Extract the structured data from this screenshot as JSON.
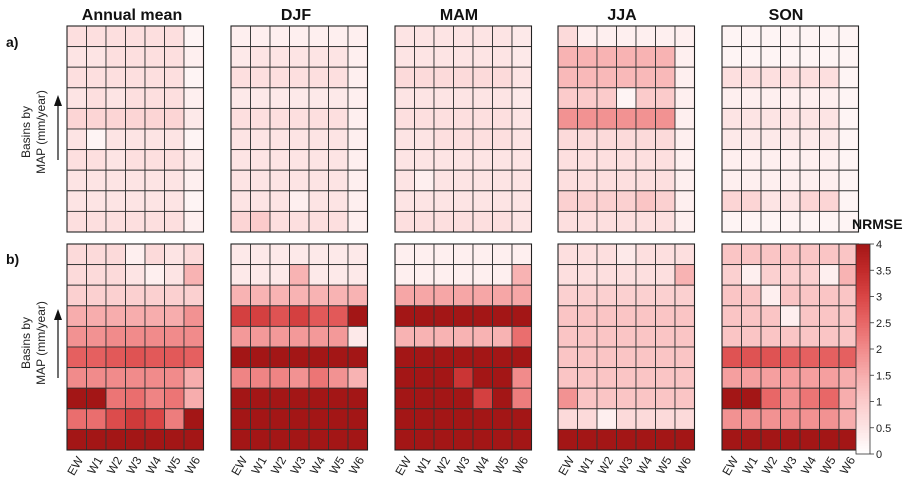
{
  "chart_data": {
    "type": "heatmap",
    "columns": [
      "Annual mean",
      "DJF",
      "MAM",
      "JJA",
      "SON"
    ],
    "row_labels": [
      "a)",
      "b)"
    ],
    "x_ticks": [
      "EW",
      "W1",
      "W2",
      "W3",
      "W4",
      "W5",
      "W6"
    ],
    "ylabel_line1": "Basins by",
    "ylabel_line2": "MAP (mm/year)",
    "colorbar": {
      "title": "NRMSE",
      "min": 0,
      "max": 4,
      "ticks": [
        "0",
        "0.5",
        "1",
        "1.5",
        "2",
        "2.5",
        "3",
        "3.5",
        "4"
      ],
      "colors": [
        "#ffffff",
        "#fde4e4",
        "#fbcbcb",
        "#f7adad",
        "#f18b8b",
        "#e86767",
        "#d94545",
        "#c12a2a",
        "#a31616"
      ]
    },
    "grid_rows": 10,
    "note_rows": "rows listed top (highest MAP) to bottom; values are NRMSE",
    "panels": {
      "a": [
        [
          [
            0.6,
            0.6,
            0.6,
            0.6,
            0.6,
            0.6,
            0.2
          ],
          [
            0.5,
            0.5,
            0.6,
            0.6,
            0.6,
            0.6,
            0.3
          ],
          [
            0.6,
            0.6,
            0.6,
            0.6,
            0.6,
            0.6,
            0.2
          ],
          [
            0.5,
            0.6,
            0.5,
            0.6,
            0.6,
            0.6,
            0.3
          ],
          [
            0.8,
            0.8,
            0.8,
            0.8,
            0.8,
            0.8,
            0.4
          ],
          [
            0.5,
            0.2,
            0.5,
            0.5,
            0.5,
            0.5,
            0.2
          ],
          [
            0.6,
            0.6,
            0.5,
            0.6,
            0.6,
            0.6,
            0.4
          ],
          [
            0.5,
            0.5,
            0.5,
            0.5,
            0.5,
            0.5,
            0.3
          ],
          [
            0.5,
            0.5,
            0.5,
            0.5,
            0.5,
            0.5,
            0.2
          ],
          [
            0.6,
            0.6,
            0.6,
            0.6,
            0.6,
            0.6,
            0.3
          ]
        ],
        [
          [
            0.3,
            0.3,
            0.3,
            0.3,
            0.3,
            0.3,
            0.3
          ],
          [
            0.4,
            0.5,
            0.5,
            0.5,
            0.5,
            0.5,
            0.3
          ],
          [
            0.6,
            0.6,
            0.6,
            0.6,
            0.6,
            0.6,
            0.3
          ],
          [
            0.4,
            0.4,
            0.4,
            0.4,
            0.4,
            0.4,
            0.3
          ],
          [
            0.6,
            0.6,
            0.6,
            0.6,
            0.6,
            0.6,
            0.3
          ],
          [
            0.5,
            0.5,
            0.5,
            0.5,
            0.5,
            0.5,
            0.3
          ],
          [
            0.5,
            0.5,
            0.5,
            0.5,
            0.5,
            0.5,
            0.3
          ],
          [
            0.5,
            0.5,
            0.5,
            0.5,
            0.5,
            0.5,
            0.3
          ],
          [
            0.5,
            0.5,
            0.5,
            0.3,
            0.5,
            0.5,
            0.3
          ],
          [
            0.8,
            1.0,
            0.6,
            0.6,
            0.6,
            0.6,
            0.3
          ]
        ],
        [
          [
            0.5,
            0.5,
            0.5,
            0.5,
            0.5,
            0.5,
            0.4
          ],
          [
            0.5,
            0.5,
            0.5,
            0.5,
            0.5,
            0.5,
            0.4
          ],
          [
            0.7,
            0.7,
            0.7,
            0.7,
            0.7,
            0.7,
            0.5
          ],
          [
            0.5,
            0.5,
            0.5,
            0.5,
            0.5,
            0.5,
            0.4
          ],
          [
            0.6,
            0.6,
            0.6,
            0.6,
            0.6,
            0.6,
            0.5
          ],
          [
            0.5,
            0.5,
            0.6,
            0.6,
            0.6,
            0.6,
            0.5
          ],
          [
            0.5,
            0.5,
            0.5,
            0.5,
            0.5,
            0.5,
            0.5
          ],
          [
            0.5,
            0.3,
            0.5,
            0.5,
            0.5,
            0.5,
            0.5
          ],
          [
            0.5,
            0.5,
            0.5,
            0.5,
            0.5,
            0.5,
            0.5
          ],
          [
            0.6,
            0.6,
            0.6,
            0.6,
            0.6,
            0.6,
            0.5
          ]
        ],
        [
          [
            0.7,
            0.3,
            0.3,
            0.3,
            0.3,
            0.3,
            0.3
          ],
          [
            1.4,
            1.4,
            1.4,
            1.4,
            1.4,
            1.4,
            0.3
          ],
          [
            1.3,
            1.3,
            1.3,
            1.3,
            1.3,
            1.3,
            0.3
          ],
          [
            1.0,
            1.0,
            1.0,
            0.2,
            1.0,
            1.0,
            0.3
          ],
          [
            1.9,
            1.9,
            1.9,
            1.9,
            1.9,
            1.9,
            0.3
          ],
          [
            0.7,
            0.7,
            0.7,
            0.7,
            0.7,
            0.7,
            0.3
          ],
          [
            0.6,
            0.6,
            0.6,
            0.6,
            0.6,
            0.6,
            0.3
          ],
          [
            0.6,
            0.6,
            0.6,
            0.6,
            0.6,
            0.6,
            0.3
          ],
          [
            0.9,
            0.9,
            0.9,
            0.9,
            1.1,
            0.9,
            0.3
          ],
          [
            0.6,
            0.6,
            0.6,
            0.6,
            0.6,
            0.6,
            0.3
          ]
        ],
        [
          [
            0.2,
            0.2,
            0.2,
            0.2,
            0.2,
            0.2,
            0.2
          ],
          [
            0.2,
            0.2,
            0.2,
            0.2,
            0.2,
            0.2,
            0.2
          ],
          [
            0.6,
            0.6,
            0.6,
            0.6,
            0.6,
            0.6,
            0.2
          ],
          [
            0.3,
            0.3,
            0.3,
            0.3,
            0.3,
            0.3,
            0.2
          ],
          [
            0.5,
            0.5,
            0.5,
            0.5,
            0.5,
            0.5,
            0.2
          ],
          [
            0.4,
            0.4,
            0.4,
            0.4,
            0.4,
            0.4,
            0.2
          ],
          [
            0.3,
            0.3,
            0.3,
            0.3,
            0.3,
            0.3,
            0.2
          ],
          [
            0.3,
            0.3,
            0.3,
            0.3,
            0.3,
            0.3,
            0.2
          ],
          [
            0.8,
            0.8,
            0.5,
            0.5,
            0.8,
            0.8,
            0.2
          ],
          [
            0.2,
            0.2,
            0.2,
            0.2,
            0.2,
            0.2,
            0.2
          ]
        ]
      ],
      "b": [
        [
          [
            0.7,
            0.7,
            0.7,
            0.3,
            0.7,
            0.5,
            0.7
          ],
          [
            0.7,
            0.7,
            0.7,
            0.5,
            0.3,
            0.5,
            1.4
          ],
          [
            0.9,
            0.9,
            0.9,
            0.9,
            0.9,
            0.9,
            0.9
          ],
          [
            1.5,
            1.5,
            1.5,
            1.5,
            1.5,
            1.5,
            1.9
          ],
          [
            1.9,
            1.9,
            2.0,
            2.0,
            2.0,
            2.0,
            2.0
          ],
          [
            2.6,
            2.6,
            2.7,
            2.8,
            2.7,
            2.7,
            2.6
          ],
          [
            2.0,
            2.0,
            2.0,
            2.0,
            2.0,
            2.0,
            1.5
          ],
          [
            4.0,
            4.0,
            2.3,
            2.4,
            2.1,
            2.3,
            1.5
          ],
          [
            2.4,
            2.4,
            2.9,
            3.2,
            3.0,
            2.2,
            4.0
          ],
          [
            4.0,
            4.0,
            4.0,
            4.0,
            4.0,
            4.0,
            4.0
          ]
        ],
        [
          [
            0.4,
            0.4,
            0.4,
            0.4,
            0.4,
            0.4,
            0.4
          ],
          [
            0.4,
            0.4,
            0.4,
            1.4,
            0.4,
            0.4,
            0.4
          ],
          [
            1.4,
            1.4,
            1.4,
            1.4,
            1.4,
            1.4,
            1.4
          ],
          [
            3.1,
            3.1,
            2.8,
            3.1,
            2.7,
            2.7,
            4.0
          ],
          [
            1.8,
            1.8,
            1.8,
            1.8,
            1.8,
            1.8,
            0.4
          ],
          [
            4.0,
            4.0,
            4.0,
            4.0,
            4.0,
            4.0,
            4.0
          ],
          [
            2.1,
            2.1,
            2.1,
            1.9,
            2.3,
            1.9,
            1.4
          ],
          [
            4.0,
            4.0,
            4.0,
            4.0,
            4.0,
            4.0,
            4.0
          ],
          [
            4.0,
            4.0,
            4.0,
            4.0,
            4.0,
            4.0,
            4.0
          ],
          [
            4.0,
            4.0,
            4.0,
            4.0,
            4.0,
            4.0,
            4.0
          ]
        ],
        [
          [
            0.3,
            0.3,
            0.3,
            0.3,
            0.3,
            0.3,
            0.3
          ],
          [
            0.3,
            0.3,
            0.3,
            0.3,
            0.3,
            0.3,
            1.4
          ],
          [
            1.6,
            1.6,
            1.6,
            1.6,
            1.6,
            1.6,
            1.6
          ],
          [
            4.0,
            4.0,
            4.0,
            4.0,
            4.0,
            4.0,
            4.0
          ],
          [
            1.4,
            1.4,
            1.4,
            1.4,
            1.4,
            1.4,
            2.4
          ],
          [
            4.0,
            4.0,
            4.0,
            4.0,
            4.0,
            4.0,
            4.0
          ],
          [
            4.0,
            4.0,
            4.0,
            3.3,
            4.0,
            4.0,
            2.0
          ],
          [
            4.0,
            4.0,
            4.0,
            4.0,
            3.1,
            4.0,
            2.2
          ],
          [
            4.0,
            4.0,
            4.0,
            4.0,
            4.0,
            4.0,
            4.0
          ],
          [
            4.0,
            4.0,
            4.0,
            4.0,
            4.0,
            4.0,
            4.0
          ]
        ],
        [
          [
            0.6,
            0.6,
            0.6,
            0.4,
            0.6,
            0.6,
            0.6
          ],
          [
            0.6,
            0.6,
            0.6,
            0.6,
            0.6,
            0.6,
            1.4
          ],
          [
            0.9,
            0.9,
            0.9,
            0.9,
            0.9,
            0.9,
            0.9
          ],
          [
            1.1,
            1.1,
            1.1,
            1.1,
            1.1,
            1.1,
            1.1
          ],
          [
            1.1,
            1.1,
            1.1,
            1.1,
            1.1,
            1.1,
            1.1
          ],
          [
            1.1,
            1.1,
            1.1,
            1.1,
            1.1,
            1.1,
            1.1
          ],
          [
            1.1,
            1.1,
            1.1,
            1.1,
            1.1,
            1.1,
            1.1
          ],
          [
            1.9,
            1.1,
            1.1,
            1.1,
            1.1,
            1.1,
            1.1
          ],
          [
            0.7,
            0.7,
            0.3,
            0.7,
            0.7,
            0.7,
            0.7
          ],
          [
            4.0,
            4.0,
            4.0,
            4.0,
            4.0,
            4.0,
            4.0
          ]
        ],
        [
          [
            1.1,
            1.1,
            1.1,
            1.1,
            1.1,
            1.1,
            1.1
          ],
          [
            0.9,
            0.3,
            0.9,
            0.9,
            0.9,
            0.3,
            1.4
          ],
          [
            1.1,
            1.1,
            0.3,
            1.1,
            1.1,
            1.1,
            1.1
          ],
          [
            1.1,
            1.1,
            1.1,
            0.3,
            1.1,
            1.1,
            1.1
          ],
          [
            1.1,
            1.1,
            1.1,
            1.1,
            1.1,
            1.1,
            1.1
          ],
          [
            2.8,
            2.8,
            2.8,
            2.6,
            2.6,
            2.6,
            2.6
          ],
          [
            1.7,
            1.7,
            1.7,
            1.7,
            1.7,
            1.7,
            1.5
          ],
          [
            4.0,
            4.0,
            2.5,
            1.9,
            2.3,
            2.5,
            1.5
          ],
          [
            1.9,
            1.9,
            1.9,
            1.9,
            1.9,
            1.9,
            1.5
          ],
          [
            4.0,
            4.0,
            4.0,
            4.0,
            4.0,
            4.0,
            4.0
          ]
        ]
      ]
    }
  }
}
